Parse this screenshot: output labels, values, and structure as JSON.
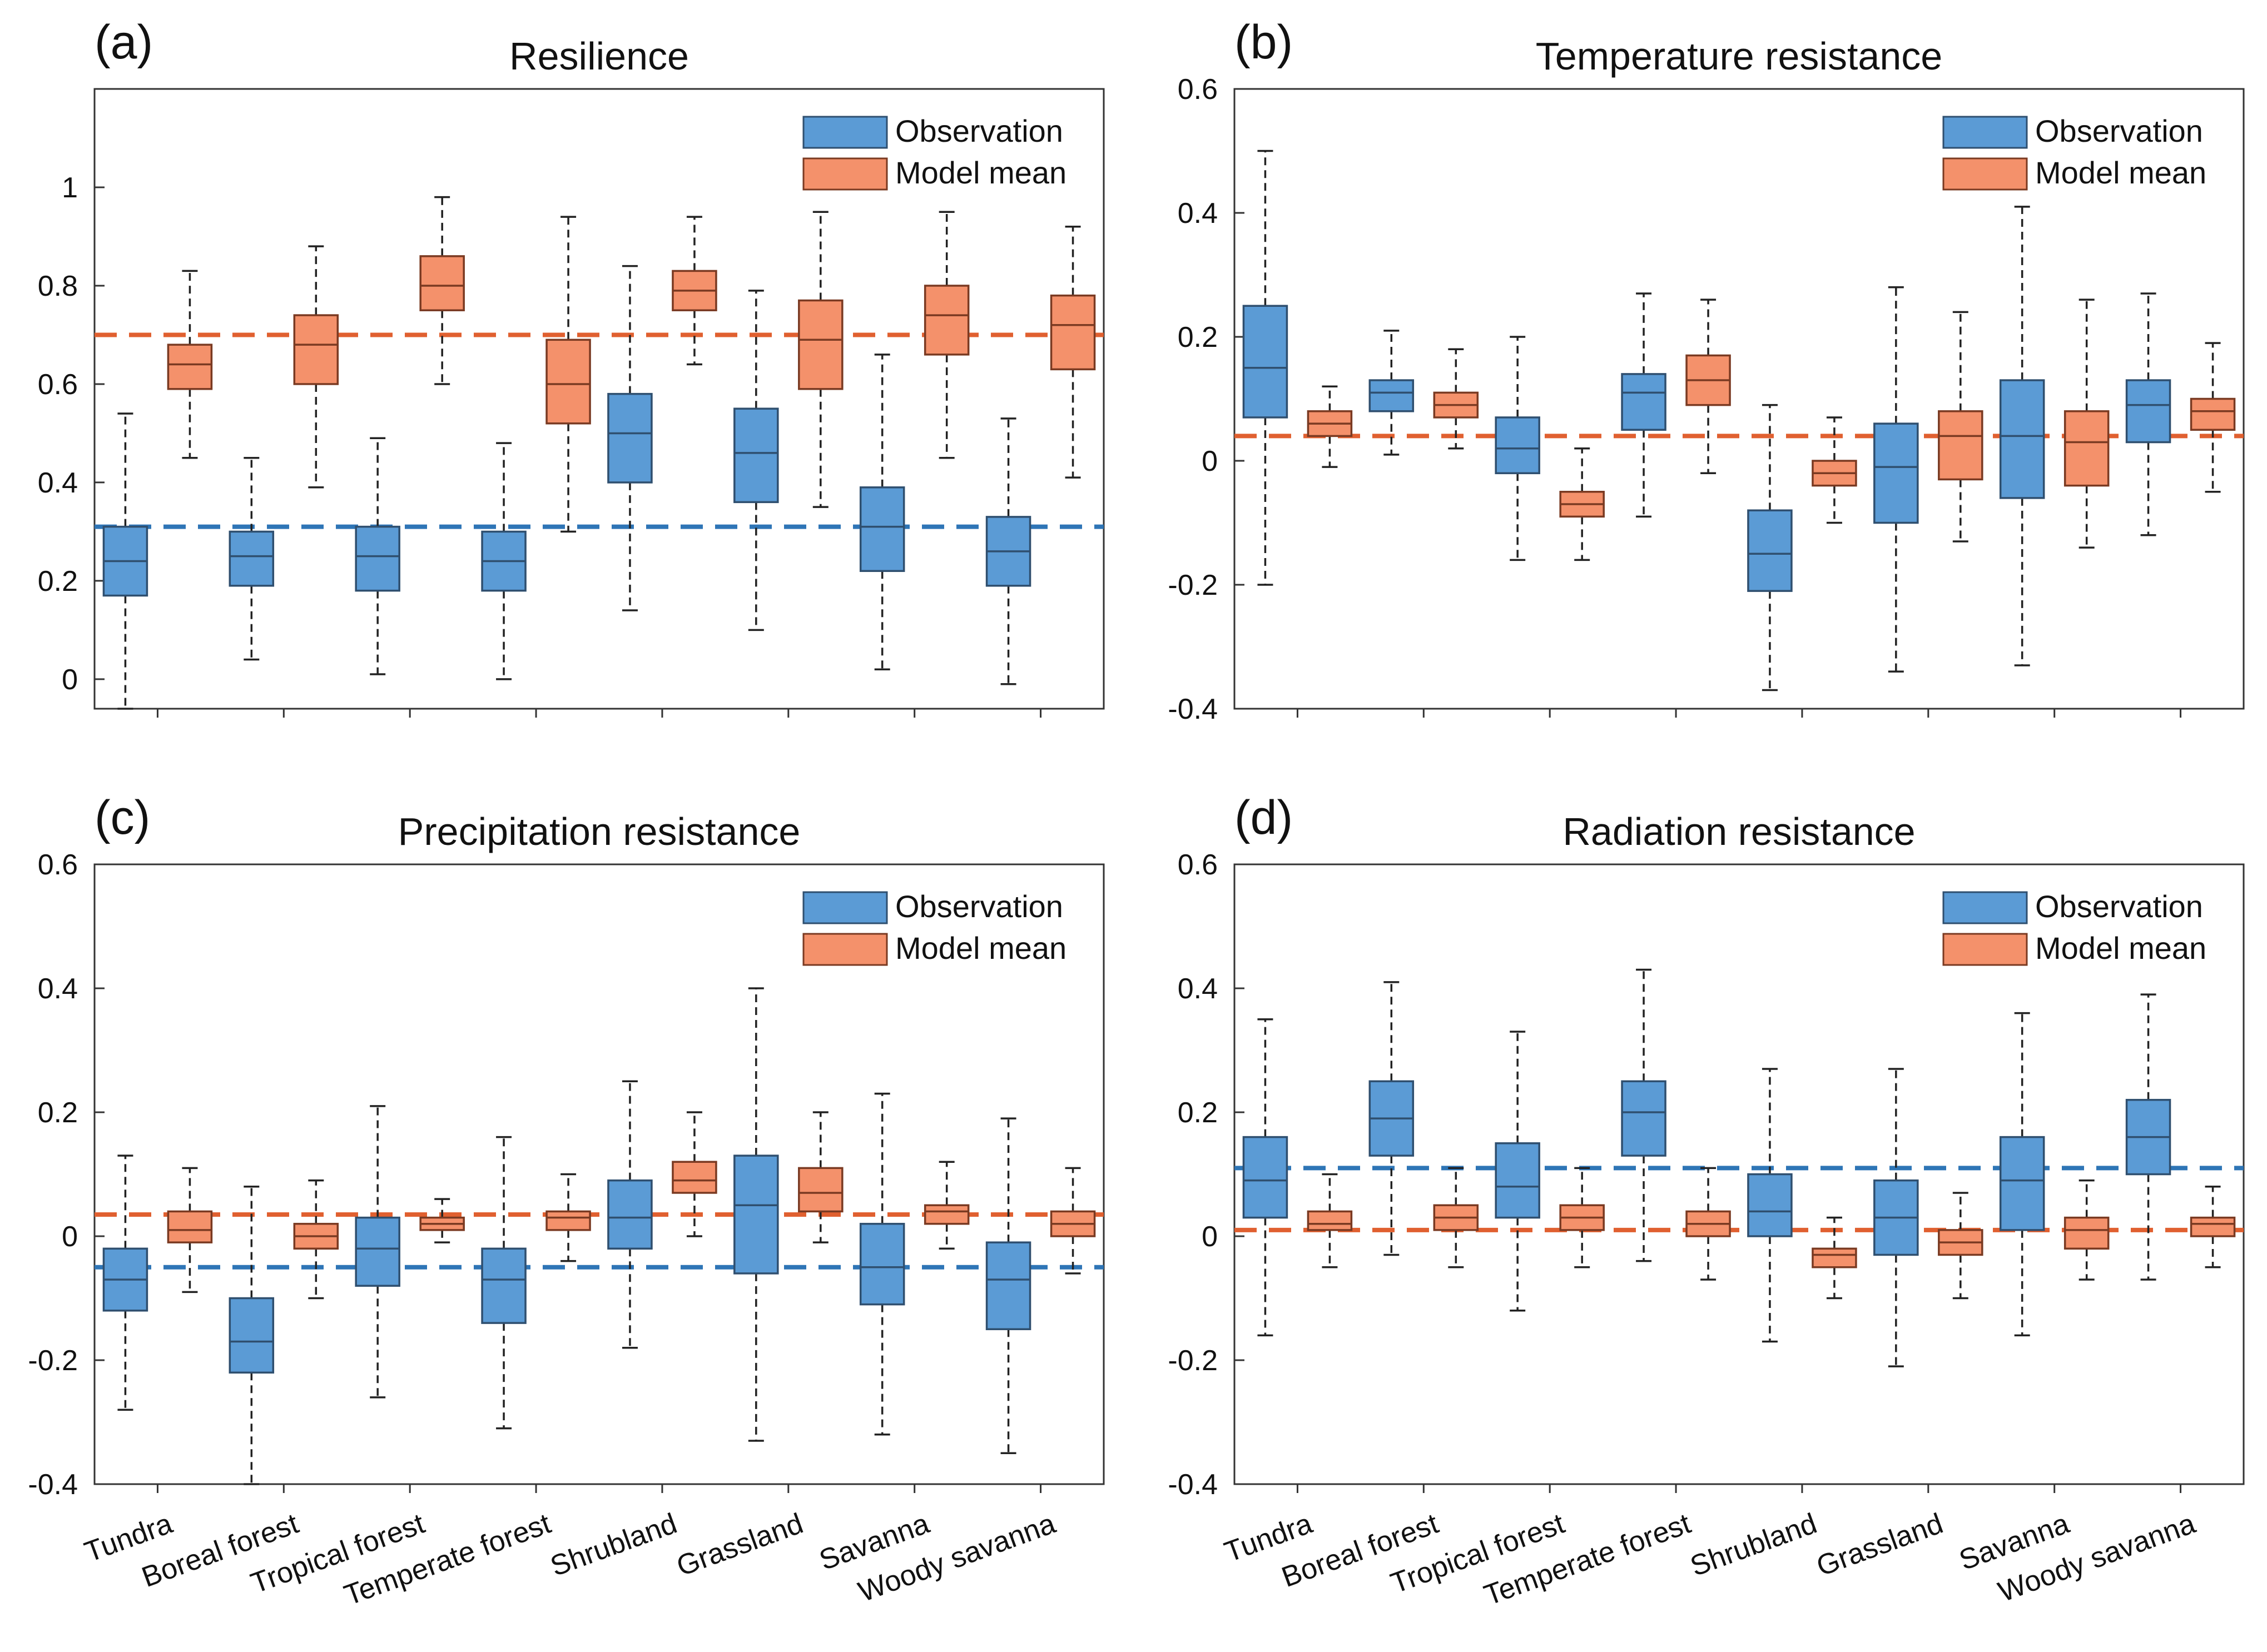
{
  "figure": {
    "categories": [
      "Tundra",
      "Boreal forest",
      "Tropical forest",
      "Temperate forest",
      "Shrubland",
      "Grassland",
      "Savanna",
      "Woody savanna"
    ],
    "legend": {
      "observation": "Observation",
      "model": "Model mean"
    },
    "colors": {
      "observation": "#5B9BD5",
      "observation_edge": "#2F4F6F",
      "observation_line": "#2E75B6",
      "model": "#F4916B",
      "model_edge": "#7A3A22",
      "model_line": "#E06030"
    }
  },
  "chart_data": [
    {
      "type": "box",
      "panel": "(a)",
      "title": "Resilience",
      "ylim": [
        -0.06,
        1.2
      ],
      "yticks": [
        0,
        0.2,
        0.4,
        0.6,
        0.8,
        1
      ],
      "ytick_labels": [
        "0",
        "0.2",
        "0.4",
        "0.6",
        "0.8",
        "1"
      ],
      "show_xticks": false,
      "reference_lines": {
        "observation": 0.31,
        "model": 0.7
      },
      "series": [
        {
          "name": "Observation",
          "boxes": [
            {
              "whislo": -0.06,
              "q1": 0.17,
              "med": 0.24,
              "q3": 0.31,
              "whishi": 0.54
            },
            {
              "whislo": 0.04,
              "q1": 0.19,
              "med": 0.25,
              "q3": 0.3,
              "whishi": 0.45
            },
            {
              "whislo": 0.01,
              "q1": 0.18,
              "med": 0.25,
              "q3": 0.31,
              "whishi": 0.49
            },
            {
              "whislo": 0.0,
              "q1": 0.18,
              "med": 0.24,
              "q3": 0.3,
              "whishi": 0.48
            },
            {
              "whislo": 0.14,
              "q1": 0.4,
              "med": 0.5,
              "q3": 0.58,
              "whishi": 0.84
            },
            {
              "whislo": 0.1,
              "q1": 0.36,
              "med": 0.46,
              "q3": 0.55,
              "whishi": 0.79
            },
            {
              "whislo": 0.02,
              "q1": 0.22,
              "med": 0.31,
              "q3": 0.39,
              "whishi": 0.66
            },
            {
              "whislo": -0.01,
              "q1": 0.19,
              "med": 0.26,
              "q3": 0.33,
              "whishi": 0.53
            }
          ]
        },
        {
          "name": "Model mean",
          "boxes": [
            {
              "whislo": 0.45,
              "q1": 0.59,
              "med": 0.64,
              "q3": 0.68,
              "whishi": 0.83
            },
            {
              "whislo": 0.39,
              "q1": 0.6,
              "med": 0.68,
              "q3": 0.74,
              "whishi": 0.88
            },
            {
              "whislo": 0.6,
              "q1": 0.75,
              "med": 0.8,
              "q3": 0.86,
              "whishi": 0.98
            },
            {
              "whislo": 0.3,
              "q1": 0.52,
              "med": 0.6,
              "q3": 0.69,
              "whishi": 0.94
            },
            {
              "whislo": 0.64,
              "q1": 0.75,
              "med": 0.79,
              "q3": 0.83,
              "whishi": 0.94
            },
            {
              "whislo": 0.35,
              "q1": 0.59,
              "med": 0.69,
              "q3": 0.77,
              "whishi": 0.95
            },
            {
              "whislo": 0.45,
              "q1": 0.66,
              "med": 0.74,
              "q3": 0.8,
              "whishi": 0.95
            },
            {
              "whislo": 0.41,
              "q1": 0.63,
              "med": 0.72,
              "q3": 0.78,
              "whishi": 0.92
            }
          ]
        }
      ]
    },
    {
      "type": "box",
      "panel": "(b)",
      "title": "Temperature resistance",
      "ylim": [
        -0.4,
        0.6
      ],
      "yticks": [
        -0.4,
        -0.2,
        0,
        0.2,
        0.4,
        0.6
      ],
      "ytick_labels": [
        "-0.4",
        "-0.2",
        "0",
        "0.2",
        "0.4",
        "0.6"
      ],
      "show_xticks": false,
      "reference_lines": {
        "model": 0.04
      },
      "series": [
        {
          "name": "Observation",
          "boxes": [
            {
              "whislo": -0.2,
              "q1": 0.07,
              "med": 0.15,
              "q3": 0.25,
              "whishi": 0.5
            },
            {
              "whislo": 0.01,
              "q1": 0.08,
              "med": 0.11,
              "q3": 0.13,
              "whishi": 0.21
            },
            {
              "whislo": -0.16,
              "q1": -0.02,
              "med": 0.02,
              "q3": 0.07,
              "whishi": 0.2
            },
            {
              "whislo": -0.09,
              "q1": 0.05,
              "med": 0.11,
              "q3": 0.14,
              "whishi": 0.27
            },
            {
              "whislo": -0.37,
              "q1": -0.21,
              "med": -0.15,
              "q3": -0.08,
              "whishi": 0.09
            },
            {
              "whislo": -0.34,
              "q1": -0.1,
              "med": -0.01,
              "q3": 0.06,
              "whishi": 0.28
            },
            {
              "whislo": -0.33,
              "q1": -0.06,
              "med": 0.04,
              "q3": 0.13,
              "whishi": 0.41
            },
            {
              "whislo": -0.12,
              "q1": 0.03,
              "med": 0.09,
              "q3": 0.13,
              "whishi": 0.27
            }
          ]
        },
        {
          "name": "Model mean",
          "boxes": [
            {
              "whislo": -0.01,
              "q1": 0.04,
              "med": 0.06,
              "q3": 0.08,
              "whishi": 0.12
            },
            {
              "whislo": 0.02,
              "q1": 0.07,
              "med": 0.09,
              "q3": 0.11,
              "whishi": 0.18
            },
            {
              "whislo": -0.16,
              "q1": -0.09,
              "med": -0.07,
              "q3": -0.05,
              "whishi": 0.02
            },
            {
              "whislo": -0.02,
              "q1": 0.09,
              "med": 0.13,
              "q3": 0.17,
              "whishi": 0.26
            },
            {
              "whislo": -0.1,
              "q1": -0.04,
              "med": -0.02,
              "q3": 0.0,
              "whishi": 0.07
            },
            {
              "whislo": -0.13,
              "q1": -0.03,
              "med": 0.04,
              "q3": 0.08,
              "whishi": 0.24
            },
            {
              "whislo": -0.14,
              "q1": -0.04,
              "med": 0.03,
              "q3": 0.08,
              "whishi": 0.26
            },
            {
              "whislo": -0.05,
              "q1": 0.05,
              "med": 0.08,
              "q3": 0.1,
              "whishi": 0.19
            }
          ]
        }
      ]
    },
    {
      "type": "box",
      "panel": "(c)",
      "title": "Precipitation resistance",
      "ylim": [
        -0.4,
        0.6
      ],
      "yticks": [
        -0.4,
        -0.2,
        0,
        0.2,
        0.4,
        0.6
      ],
      "ytick_labels": [
        "-0.4",
        "-0.2",
        "0",
        "0.2",
        "0.4",
        "0.6"
      ],
      "show_xticks": true,
      "reference_lines": {
        "observation": -0.05,
        "model": 0.035
      },
      "series": [
        {
          "name": "Observation",
          "boxes": [
            {
              "whislo": -0.28,
              "q1": -0.12,
              "med": -0.07,
              "q3": -0.02,
              "whishi": 0.13
            },
            {
              "whislo": -0.4,
              "q1": -0.22,
              "med": -0.17,
              "q3": -0.1,
              "whishi": 0.08
            },
            {
              "whislo": -0.26,
              "q1": -0.08,
              "med": -0.02,
              "q3": 0.03,
              "whishi": 0.21
            },
            {
              "whislo": -0.31,
              "q1": -0.14,
              "med": -0.07,
              "q3": -0.02,
              "whishi": 0.16
            },
            {
              "whislo": -0.18,
              "q1": -0.02,
              "med": 0.03,
              "q3": 0.09,
              "whishi": 0.25
            },
            {
              "whislo": -0.33,
              "q1": -0.06,
              "med": 0.05,
              "q3": 0.13,
              "whishi": 0.4
            },
            {
              "whislo": -0.32,
              "q1": -0.11,
              "med": -0.05,
              "q3": 0.02,
              "whishi": 0.23
            },
            {
              "whislo": -0.35,
              "q1": -0.15,
              "med": -0.07,
              "q3": -0.01,
              "whishi": 0.19
            }
          ]
        },
        {
          "name": "Model mean",
          "boxes": [
            {
              "whislo": -0.09,
              "q1": -0.01,
              "med": 0.01,
              "q3": 0.04,
              "whishi": 0.11
            },
            {
              "whislo": -0.1,
              "q1": -0.02,
              "med": 0.0,
              "q3": 0.02,
              "whishi": 0.09
            },
            {
              "whislo": -0.01,
              "q1": 0.01,
              "med": 0.02,
              "q3": 0.03,
              "whishi": 0.06
            },
            {
              "whislo": -0.04,
              "q1": 0.01,
              "med": 0.03,
              "q3": 0.04,
              "whishi": 0.1
            },
            {
              "whislo": 0.0,
              "q1": 0.07,
              "med": 0.09,
              "q3": 0.12,
              "whishi": 0.2
            },
            {
              "whislo": -0.01,
              "q1": 0.04,
              "med": 0.07,
              "q3": 0.11,
              "whishi": 0.2
            },
            {
              "whislo": -0.02,
              "q1": 0.02,
              "med": 0.04,
              "q3": 0.05,
              "whishi": 0.12
            },
            {
              "whislo": -0.06,
              "q1": 0.0,
              "med": 0.02,
              "q3": 0.04,
              "whishi": 0.11
            }
          ]
        }
      ]
    },
    {
      "type": "box",
      "panel": "(d)",
      "title": "Radiation resistance",
      "ylim": [
        -0.4,
        0.6
      ],
      "yticks": [
        -0.4,
        -0.2,
        0,
        0.2,
        0.4,
        0.6
      ],
      "ytick_labels": [
        "-0.4",
        "-0.2",
        "0",
        "0.2",
        "0.4",
        "0.6"
      ],
      "show_xticks": true,
      "reference_lines": {
        "observation": 0.11,
        "model": 0.01
      },
      "series": [
        {
          "name": "Observation",
          "boxes": [
            {
              "whislo": -0.16,
              "q1": 0.03,
              "med": 0.09,
              "q3": 0.16,
              "whishi": 0.35
            },
            {
              "whislo": -0.03,
              "q1": 0.13,
              "med": 0.19,
              "q3": 0.25,
              "whishi": 0.41
            },
            {
              "whislo": -0.12,
              "q1": 0.03,
              "med": 0.08,
              "q3": 0.15,
              "whishi": 0.33
            },
            {
              "whislo": -0.04,
              "q1": 0.13,
              "med": 0.2,
              "q3": 0.25,
              "whishi": 0.43
            },
            {
              "whislo": -0.17,
              "q1": 0.0,
              "med": 0.04,
              "q3": 0.1,
              "whishi": 0.27
            },
            {
              "whislo": -0.21,
              "q1": -0.03,
              "med": 0.03,
              "q3": 0.09,
              "whishi": 0.27
            },
            {
              "whislo": -0.16,
              "q1": 0.01,
              "med": 0.09,
              "q3": 0.16,
              "whishi": 0.36
            },
            {
              "whislo": -0.07,
              "q1": 0.1,
              "med": 0.16,
              "q3": 0.22,
              "whishi": 0.39
            }
          ]
        },
        {
          "name": "Model mean",
          "boxes": [
            {
              "whislo": -0.05,
              "q1": 0.01,
              "med": 0.02,
              "q3": 0.04,
              "whishi": 0.1
            },
            {
              "whislo": -0.05,
              "q1": 0.01,
              "med": 0.03,
              "q3": 0.05,
              "whishi": 0.11
            },
            {
              "whislo": -0.05,
              "q1": 0.01,
              "med": 0.03,
              "q3": 0.05,
              "whishi": 0.11
            },
            {
              "whislo": -0.07,
              "q1": 0.0,
              "med": 0.02,
              "q3": 0.04,
              "whishi": 0.11
            },
            {
              "whislo": -0.1,
              "q1": -0.05,
              "med": -0.03,
              "q3": -0.02,
              "whishi": 0.03
            },
            {
              "whislo": -0.1,
              "q1": -0.03,
              "med": -0.01,
              "q3": 0.01,
              "whishi": 0.07
            },
            {
              "whislo": -0.07,
              "q1": -0.02,
              "med": 0.01,
              "q3": 0.03,
              "whishi": 0.09
            },
            {
              "whislo": -0.05,
              "q1": 0.0,
              "med": 0.02,
              "q3": 0.03,
              "whishi": 0.08
            }
          ]
        }
      ]
    }
  ]
}
